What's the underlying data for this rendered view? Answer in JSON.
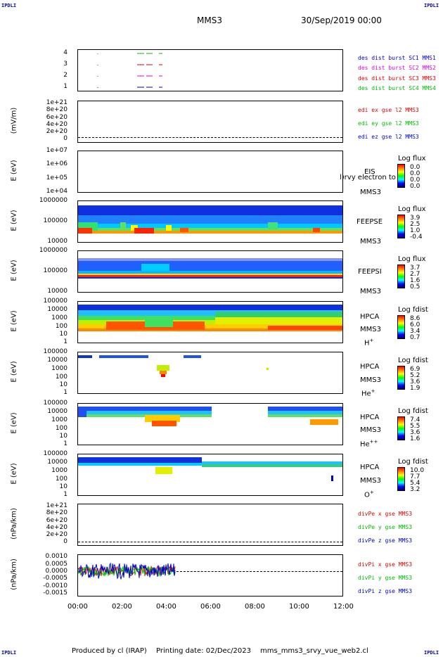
{
  "corner_tl": "IPDLI",
  "corner_tr": "IPDLI",
  "corner_bl": "IPDLI",
  "corner_br": "IPDLI",
  "header": {
    "spacecraft": "MMS3",
    "date": "30/Sep/2019 00:00"
  },
  "footer": {
    "produced": "Produced by cl (IRAP)",
    "printing": "Printing date: 02/Dec/2023",
    "file": "mms_mms3_srvy_vue_web2.cl"
  },
  "colors": {
    "sc1": "#0000cc",
    "sc2": "#dd00dd",
    "sc3": "#dd0000",
    "sc4": "#00bb00",
    "x": "#dd0000",
    "y": "#00bb00",
    "z": "#0000cc"
  },
  "x_ticks": [
    "00:00",
    "02:00",
    "04:00",
    "06:00",
    "08:00",
    "10:00",
    "12:00"
  ],
  "panels": {
    "burst": {
      "y_ticks": [
        "4",
        "3",
        "2",
        "1"
      ],
      "legend": [
        "des dist burst SC1 MMS1",
        "des dist burst SC2 MMS2",
        "des dist burst SC3 MMS3",
        "des dist burst SC4 MMS4"
      ]
    },
    "edi": {
      "ylabel": "(mV/m)",
      "y_ticks": [
        "1e+21",
        "8e+20",
        "6e+20",
        "4e+20",
        "2e+20",
        "0"
      ],
      "legend": [
        "edi ex gse l2 MMS3",
        "edi ey gse l2 MMS3",
        "edi ez gse l2 MMS3"
      ]
    },
    "eis": {
      "ylabel": "E (eV)",
      "y_ticks": [
        "1e+07",
        "1e+06",
        "1e+05",
        "1e+04"
      ],
      "inst": "EIS",
      "inst2": "MMS3",
      "overlay": "l)rvy electron to",
      "cbar_title": "Log flux",
      "cbar_vals": [
        "0.0",
        "0.0",
        "0.0",
        "0.0"
      ]
    },
    "feepse": {
      "ylabel": "E (eV)",
      "y_ticks": [
        "1000000",
        "100000",
        "10000"
      ],
      "inst": "FEEPSE",
      "inst2": "MMS3",
      "cbar_title": "Log flux",
      "cbar_vals": [
        "3.9",
        "2.5",
        "1.0",
        "-0.4"
      ]
    },
    "feepsi": {
      "ylabel": "E (eV)",
      "y_ticks": [
        "1000000",
        "100000",
        "10000"
      ],
      "inst": "FEEPSI",
      "inst2": "MMS3",
      "cbar_title": "Log flux",
      "cbar_vals": [
        "3.7",
        "2.7",
        "1.6",
        "0.5"
      ]
    },
    "hpca_h": {
      "ylabel": "E (eV)",
      "y_ticks": [
        "100000",
        "10000",
        "1000",
        "100",
        "10",
        "1"
      ],
      "inst": "HPCA",
      "inst2": "MMS3",
      "species": "H",
      "charge": "+",
      "cbar_title": "Log fdist",
      "cbar_vals": [
        "8.6",
        "6.0",
        "3.4",
        "0.7"
      ]
    },
    "hpca_he": {
      "ylabel": "E (eV)",
      "y_ticks": [
        "100000",
        "10000",
        "1000",
        "100",
        "10",
        "1"
      ],
      "inst": "HPCA",
      "inst2": "MMS3",
      "species": "He",
      "charge": "+",
      "cbar_title": "Log fdist",
      "cbar_vals": [
        "6.9",
        "5.2",
        "3.6",
        "1.9"
      ]
    },
    "hpca_he2": {
      "ylabel": "E (eV)",
      "y_ticks": [
        "100000",
        "10000",
        "1000",
        "100",
        "10",
        "1"
      ],
      "inst": "HPCA",
      "inst2": "MMS3",
      "species": "He",
      "charge": "++",
      "cbar_title": "Log fdist",
      "cbar_vals": [
        "7.4",
        "5.5",
        "3.6",
        "1.6"
      ]
    },
    "hpca_o": {
      "ylabel": "E (eV)",
      "y_ticks": [
        "100000",
        "10000",
        "1000",
        "100",
        "10",
        "1"
      ],
      "inst": "HPCA",
      "inst2": "MMS3",
      "species": "O",
      "charge": "+",
      "cbar_title": "Log fdist",
      "cbar_vals": [
        "10.0",
        "7.7",
        "5.4",
        "3.2"
      ]
    },
    "divpe": {
      "ylabel": "(nPa/km)",
      "y_ticks": [
        "1e+21",
        "8e+20",
        "6e+20",
        "4e+20",
        "2e+20",
        "0"
      ],
      "legend": [
        "divPe x gse MMS3",
        "divPe y gse MMS3",
        "divPe z gse MMS3"
      ]
    },
    "divpi": {
      "ylabel": "(nPa/km)",
      "y_ticks": [
        "0.0010",
        "0.0005",
        "0.0000",
        "-0.0005",
        "-0.0010",
        "-0.0015"
      ],
      "legend": [
        "divPi x gse MMS3",
        "divPi y gse MMS3",
        "divPi z gse MMS3"
      ]
    }
  },
  "chart_data": [
    {
      "type": "scatter",
      "series": [
        {
          "name": "des dist burst SC1 MMS1",
          "value": 4,
          "segments_hours": [
            [
              0.9,
              0.95
            ],
            [
              2.7,
              3.0
            ],
            [
              3.1,
              3.4
            ],
            [
              3.6,
              3.85
            ]
          ]
        },
        {
          "name": "des dist burst SC2 MMS2",
          "value": 3,
          "segments_hours": [
            [
              0.9,
              0.95
            ],
            [
              2.7,
              3.0
            ],
            [
              3.1,
              3.4
            ],
            [
              3.6,
              3.85
            ]
          ]
        },
        {
          "name": "des dist burst SC3 MMS3",
          "value": 2,
          "segments_hours": [
            [
              0.9,
              0.95
            ],
            [
              2.7,
              3.0
            ],
            [
              3.1,
              3.4
            ],
            [
              3.6,
              3.85
            ]
          ]
        },
        {
          "name": "des dist burst SC4 MMS4",
          "value": 1,
          "segments_hours": [
            [
              0.9,
              0.95
            ],
            [
              2.7,
              3.0
            ],
            [
              3.1,
              3.4
            ],
            [
              3.6,
              3.85
            ]
          ]
        }
      ],
      "xlim": [
        0,
        12
      ]
    },
    {
      "type": "heatmap",
      "name": "FEEPSE",
      "ylabel": "E (eV)",
      "ylim": [
        10000,
        1000000
      ],
      "xlim": [
        0,
        12
      ]
    },
    {
      "type": "heatmap",
      "name": "FEEPSI",
      "ylabel": "E (eV)",
      "ylim": [
        10000,
        1000000
      ],
      "xlim": [
        0,
        12
      ]
    },
    {
      "type": "heatmap",
      "name": "HPCA H+",
      "ylabel": "E (eV)",
      "ylim": [
        1,
        100000
      ],
      "xlim": [
        0,
        12
      ]
    },
    {
      "type": "heatmap",
      "name": "HPCA He+",
      "ylabel": "E (eV)",
      "ylim": [
        1,
        100000
      ],
      "xlim": [
        0,
        12
      ]
    },
    {
      "type": "heatmap",
      "name": "HPCA He++",
      "ylabel": "E (eV)",
      "ylim": [
        1,
        100000
      ],
      "xlim": [
        0,
        12
      ]
    },
    {
      "type": "heatmap",
      "name": "HPCA O+",
      "ylabel": "E (eV)",
      "ylim": [
        1,
        100000
      ],
      "xlim": [
        0,
        12
      ]
    },
    {
      "type": "line",
      "name": "divPi",
      "ylabel": "(nPa/km)",
      "ylim": [
        -0.0015,
        0.001
      ],
      "xlim": [
        0,
        12
      ],
      "data_extent_hours": [
        0,
        4.4
      ]
    }
  ]
}
